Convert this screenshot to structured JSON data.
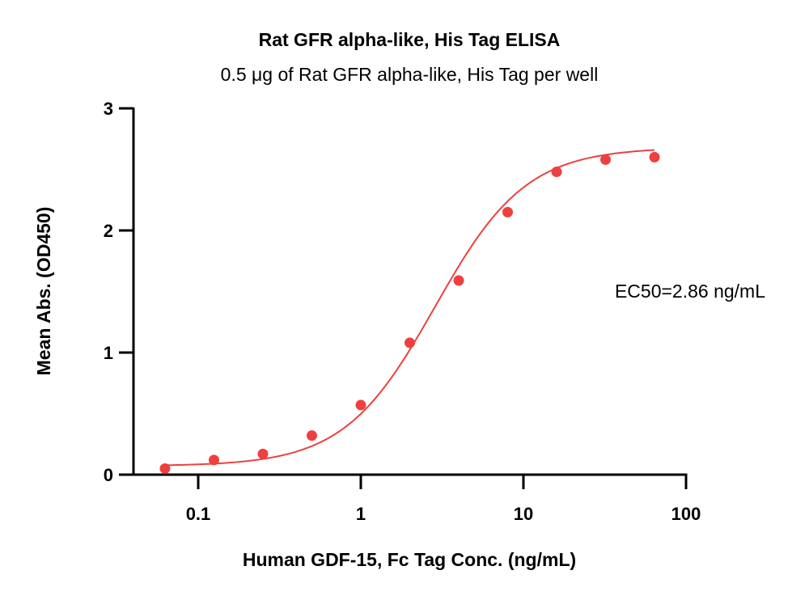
{
  "chart_data": {
    "type": "scatter",
    "title": "Rat GFR alpha-like, His Tag ELISA",
    "subtitle": "0.5 μg of Rat GFR alpha-like, His Tag per well",
    "xlabel": "Human GDF-15, Fc Tag Conc. (ng/mL)",
    "ylabel": "Mean Abs. (OD450)",
    "x_scale": "log",
    "xlim": [
      0.04,
      100
    ],
    "ylim": [
      0,
      3
    ],
    "x_ticks": [
      0.1,
      1,
      10,
      100
    ],
    "x_tick_labels": [
      "0.1",
      "1",
      "10",
      "100"
    ],
    "y_ticks": [
      0,
      1,
      2,
      3
    ],
    "y_tick_labels": [
      "0",
      "1",
      "2",
      "3"
    ],
    "grid": false,
    "annotation": "EC50=2.86 ng/mL",
    "point_color": "#ee4040",
    "curve_color": "#ee4040",
    "curve_fit": {
      "model": "4PL",
      "bottom": 0.07,
      "top": 2.68,
      "ec50": 2.86,
      "hill": 1.55
    },
    "series": [
      {
        "x": [
          0.0625,
          0.125,
          0.25,
          0.5,
          1,
          2,
          4,
          8,
          16,
          32,
          64
        ],
        "y": [
          0.05,
          0.12,
          0.17,
          0.32,
          0.57,
          1.08,
          1.59,
          2.15,
          2.48,
          2.58,
          2.6
        ]
      }
    ]
  }
}
